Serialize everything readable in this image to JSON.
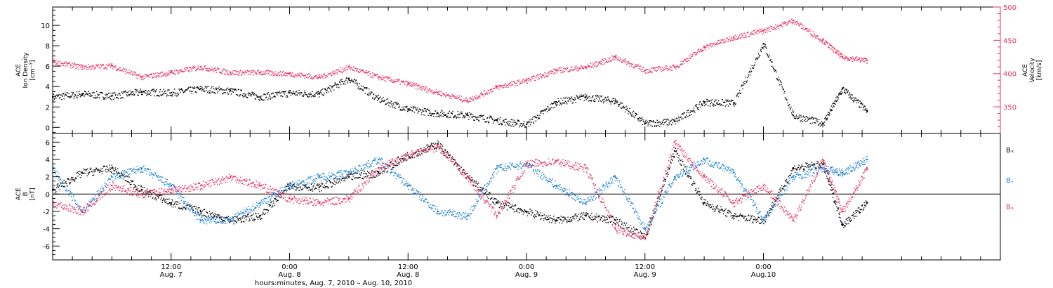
{
  "colors": {
    "black": "#000000",
    "pink": "#e8335f",
    "blue": "#1a7fd6"
  },
  "chart_data": [
    {
      "type": "scatter",
      "panel": "top",
      "ylabel_left": [
        "ACE",
        "Ion Density",
        "[cm⁻³]"
      ],
      "ylabel_right": [
        "ACE",
        "Velocity",
        "[km/s]"
      ],
      "x_range_hours": [
        0,
        96
      ],
      "ylim_left": [
        -0.6,
        11.8
      ],
      "yticks_left": [
        "0",
        "2",
        "4",
        "6",
        "8",
        "10"
      ],
      "ylim_right": [
        310,
        500
      ],
      "yticks_right": [
        "350",
        "400",
        "450",
        "500"
      ],
      "series": [
        {
          "axis": "left",
          "color": "black",
          "x": [
            0,
            3,
            6,
            9,
            12,
            15,
            18,
            21,
            24,
            27,
            30,
            33,
            36,
            39,
            42,
            45,
            48,
            51,
            54,
            57,
            60,
            63,
            66,
            69,
            72,
            75,
            78,
            80,
            82.5
          ],
          "y": [
            3.0,
            3.3,
            3.1,
            3.5,
            3.4,
            3.8,
            3.6,
            3.0,
            3.4,
            3.3,
            4.8,
            2.8,
            1.8,
            1.4,
            1.2,
            0.7,
            0.3,
            2.5,
            3.0,
            2.6,
            0.4,
            0.6,
            2.5,
            2.4,
            8.2,
            1.2,
            0.4,
            3.8,
            1.6
          ]
        },
        {
          "axis": "right",
          "color": "pink",
          "x": [
            0,
            3,
            6,
            9,
            12,
            15,
            18,
            21,
            24,
            27,
            30,
            33,
            36,
            39,
            42,
            45,
            48,
            51,
            54,
            57,
            60,
            63,
            66,
            69,
            72,
            75,
            78,
            80,
            82.5
          ],
          "y": [
            418,
            410,
            412,
            395,
            402,
            410,
            402,
            402,
            400,
            395,
            410,
            395,
            385,
            372,
            360,
            380,
            390,
            405,
            410,
            425,
            405,
            410,
            440,
            455,
            465,
            480,
            450,
            425,
            420
          ]
        }
      ]
    },
    {
      "type": "scatter",
      "panel": "bottom",
      "ylabel_left": [
        "ACE",
        "B",
        "[nT]"
      ],
      "x_range_hours": [
        0,
        96
      ],
      "ylim": [
        -7.6,
        7
      ],
      "yticks": [
        "-6",
        "-4",
        "-2",
        "0",
        "2",
        "4",
        "6"
      ],
      "zero_line": true,
      "legend": [
        "Bₓ",
        "Bᵧ",
        "Bₔ"
      ],
      "legend_placement": "right",
      "series": [
        {
          "color": "black",
          "x": [
            0,
            3,
            6,
            9,
            12,
            15,
            18,
            21,
            24,
            27,
            30,
            33,
            36,
            39,
            42,
            45,
            48,
            51,
            54,
            57,
            60,
            63,
            66,
            69,
            72,
            75,
            78,
            80,
            82.5
          ],
          "y": [
            0.5,
            2.5,
            3.0,
            0.5,
            -1.0,
            -2.0,
            -3.0,
            -2.5,
            1.0,
            0.8,
            2.0,
            2.5,
            4.5,
            5.8,
            2.0,
            -1.0,
            -2.0,
            -3.0,
            -2.5,
            -3.0,
            -5.0,
            5.0,
            -1.0,
            -2.5,
            -3.0,
            3.0,
            3.5,
            -3.5,
            -1.0
          ]
        },
        {
          "color": "blue",
          "x": [
            0,
            3,
            6,
            9,
            12,
            15,
            18,
            21,
            24,
            27,
            30,
            33,
            36,
            39,
            42,
            45,
            48,
            51,
            54,
            57,
            60,
            63,
            66,
            69,
            72,
            75,
            78,
            80,
            82.5
          ],
          "y": [
            3.0,
            -2.0,
            2.0,
            3.0,
            1.0,
            -3.0,
            -3.0,
            -1.0,
            1.0,
            2.0,
            2.5,
            4.0,
            1.0,
            -2.0,
            -2.5,
            3.0,
            3.5,
            1.0,
            -1.0,
            2.0,
            -4.0,
            2.0,
            4.0,
            2.5,
            -3.0,
            2.0,
            3.0,
            2.5,
            4.0
          ]
        },
        {
          "color": "pink",
          "x": [
            0,
            3,
            6,
            9,
            12,
            15,
            18,
            21,
            24,
            27,
            30,
            33,
            36,
            39,
            42,
            45,
            48,
            51,
            54,
            57,
            60,
            63,
            66,
            69,
            72,
            75,
            78,
            80,
            82.5
          ],
          "y": [
            -1.0,
            -2.0,
            1.0,
            0.0,
            0.5,
            1.0,
            2.0,
            1.0,
            -0.5,
            -1.0,
            -0.5,
            3.0,
            4.5,
            5.5,
            2.0,
            -2.5,
            3.5,
            3.8,
            3.0,
            -4.0,
            -5.0,
            6.0,
            2.0,
            -1.0,
            1.0,
            -3.0,
            4.0,
            -2.0,
            3.0
          ]
        }
      ]
    }
  ],
  "x_axis": {
    "tick_labels": [
      {
        "time": "12:00",
        "date": "Aug. 7",
        "hours": 12
      },
      {
        "time": "0:00",
        "date": "Aug. 8",
        "hours": 24
      },
      {
        "time": "12:00",
        "date": "Aug. 8",
        "hours": 36
      },
      {
        "time": "0:00",
        "date": "Aug. 9",
        "hours": 48
      },
      {
        "time": "12:00",
        "date": "Aug. 9",
        "hours": 60
      },
      {
        "time": "0:00",
        "date": "Aug.10",
        "hours": 72
      }
    ],
    "title": "hours:minutes, Aug.  7, 2010 – Aug. 10, 2010"
  }
}
